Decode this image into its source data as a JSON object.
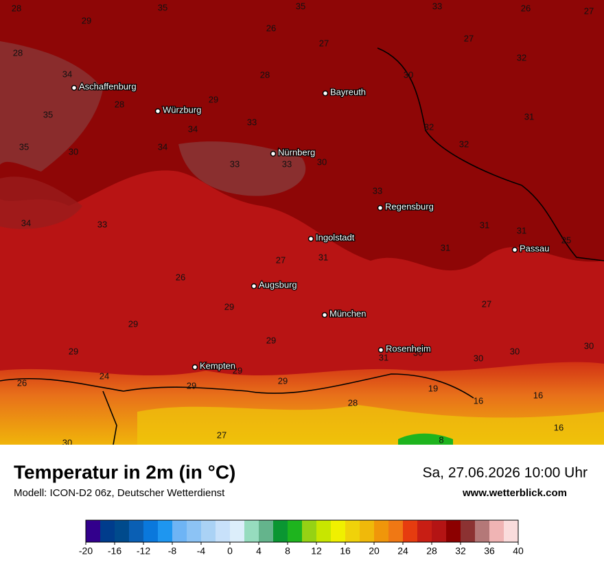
{
  "title": "Temperatur in 2m (in °C)",
  "subtitle": "Modell: ICON-D2 06z, Deutscher Wetterdienst",
  "date": "Sa, 27.06.2026 10:00 Uhr",
  "website": "www.wetterblick.com",
  "cities": [
    "Aschaffenburg",
    "Würzburg",
    "Bayreuth",
    "Nürnberg",
    "Regensburg",
    "Ingolstadt",
    "Passau",
    "Augsburg",
    "München",
    "Rosenheim",
    "Kempten"
  ],
  "map_labels": [
    28,
    35,
    35,
    33,
    26,
    27,
    29,
    26,
    27,
    27,
    28,
    32,
    34,
    28,
    30,
    29,
    28,
    35,
    33,
    34,
    32,
    31,
    35,
    30,
    34,
    32,
    33,
    33,
    30,
    33,
    34,
    33,
    31,
    31,
    25,
    31,
    27,
    31,
    26,
    27,
    29,
    29,
    29,
    29,
    30,
    31,
    30,
    30,
    30,
    24,
    26,
    29,
    29,
    29,
    19,
    16,
    16,
    28,
    16,
    27,
    30,
    8
  ],
  "colorbar": {
    "range": [
      -20,
      40
    ],
    "ticks": [
      -20,
      -16,
      -12,
      -8,
      -4,
      0,
      4,
      8,
      12,
      16,
      20,
      24,
      28,
      32,
      36,
      40
    ],
    "colors": [
      "#32008c",
      "#003c8c",
      "#004a8c",
      "#0a5fb4",
      "#0a78dc",
      "#1e96f0",
      "#6eb4f5",
      "#8cc3f5",
      "#aad2f5",
      "#c8e1fa",
      "#dceefa",
      "#96dcbe",
      "#64b48c",
      "#0a9632",
      "#1eb41e",
      "#96d214",
      "#c8e600",
      "#f0f000",
      "#f0d20a",
      "#f0b90a",
      "#f0960a",
      "#f07814",
      "#e63c0f",
      "#c81e14",
      "#b41414",
      "#8c0000",
      "#8c3232",
      "#b47878",
      "#f0b4b4",
      "#fadcdc"
    ]
  }
}
